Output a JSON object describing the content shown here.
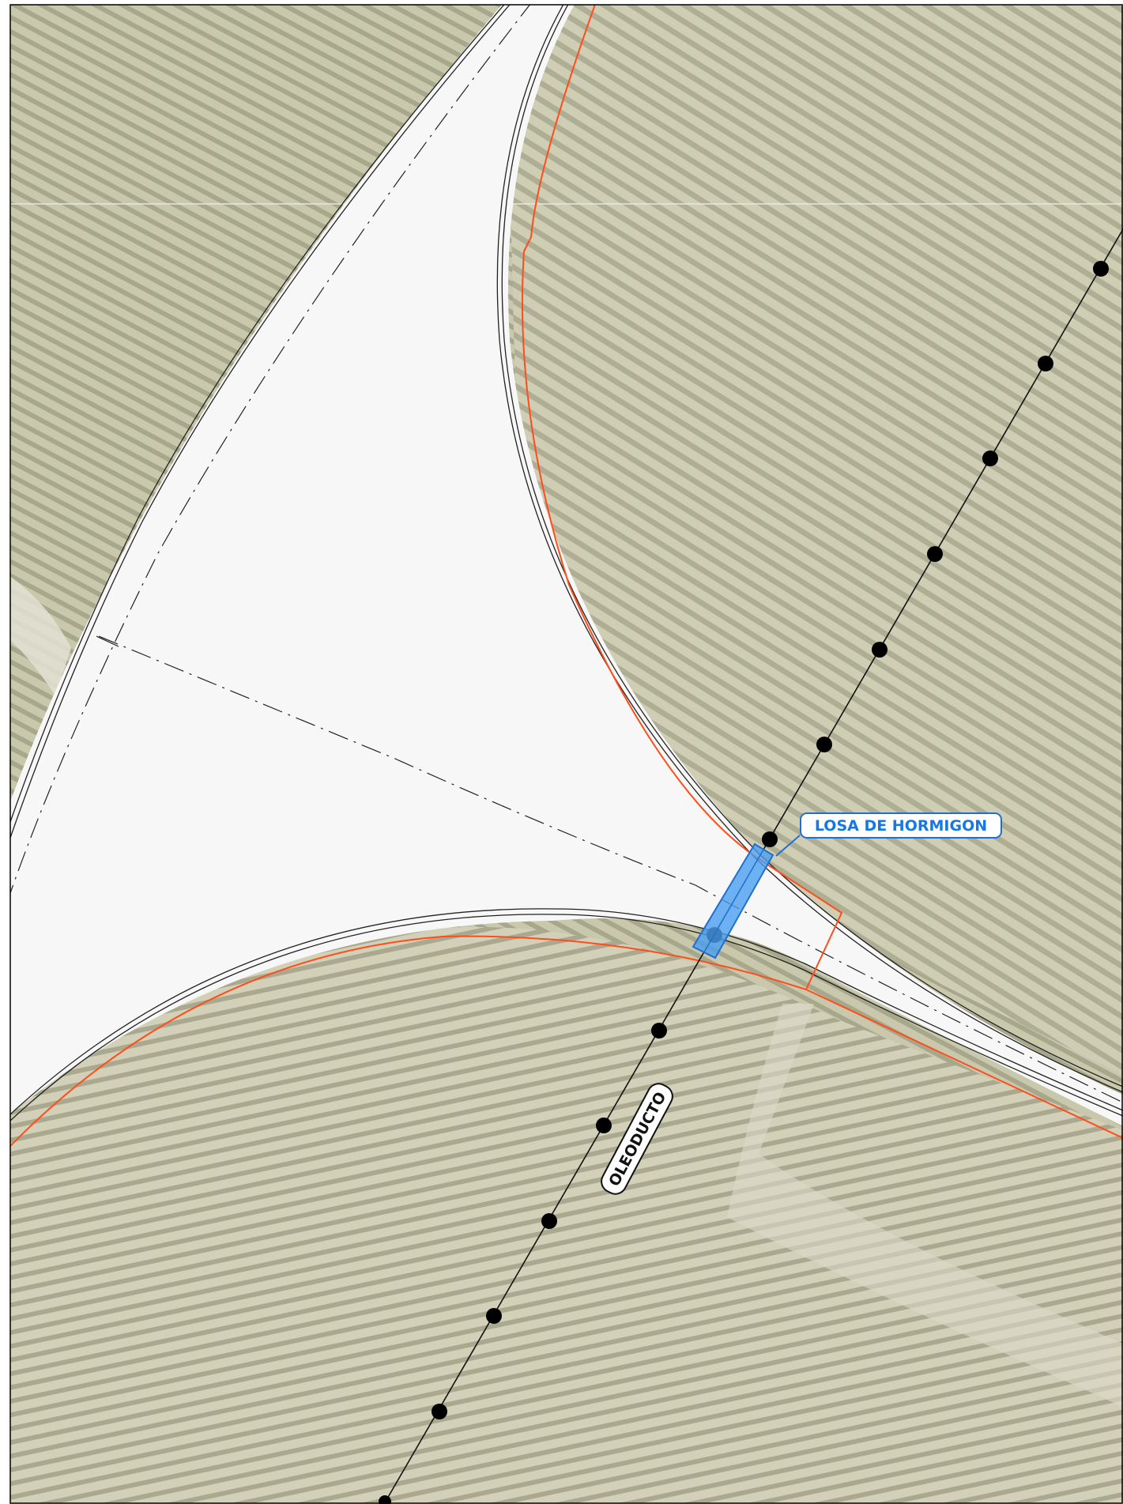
{
  "labels": {
    "losa": "LOSA DE HORMIGON",
    "oleoducto": "OLEODUCTO"
  },
  "colors": {
    "field": "#cfcdb4",
    "field_row": "#a9a98f",
    "field_light": "#e3e2d3",
    "road": "#f7f7f7",
    "road_edge": "#222222",
    "boundary": "#ff4d1a",
    "slab_fill": "#4a9ff0",
    "slab_stroke": "#1f6fd1",
    "callout_text": "#1578e6",
    "pipeline": "#111111",
    "frame": "#000000"
  },
  "layers": [
    "aerial-photo",
    "road-pavement",
    "road-edge-lines",
    "centerlines",
    "expropriation-boundary",
    "pipeline",
    "concrete-slab",
    "annotations"
  ]
}
